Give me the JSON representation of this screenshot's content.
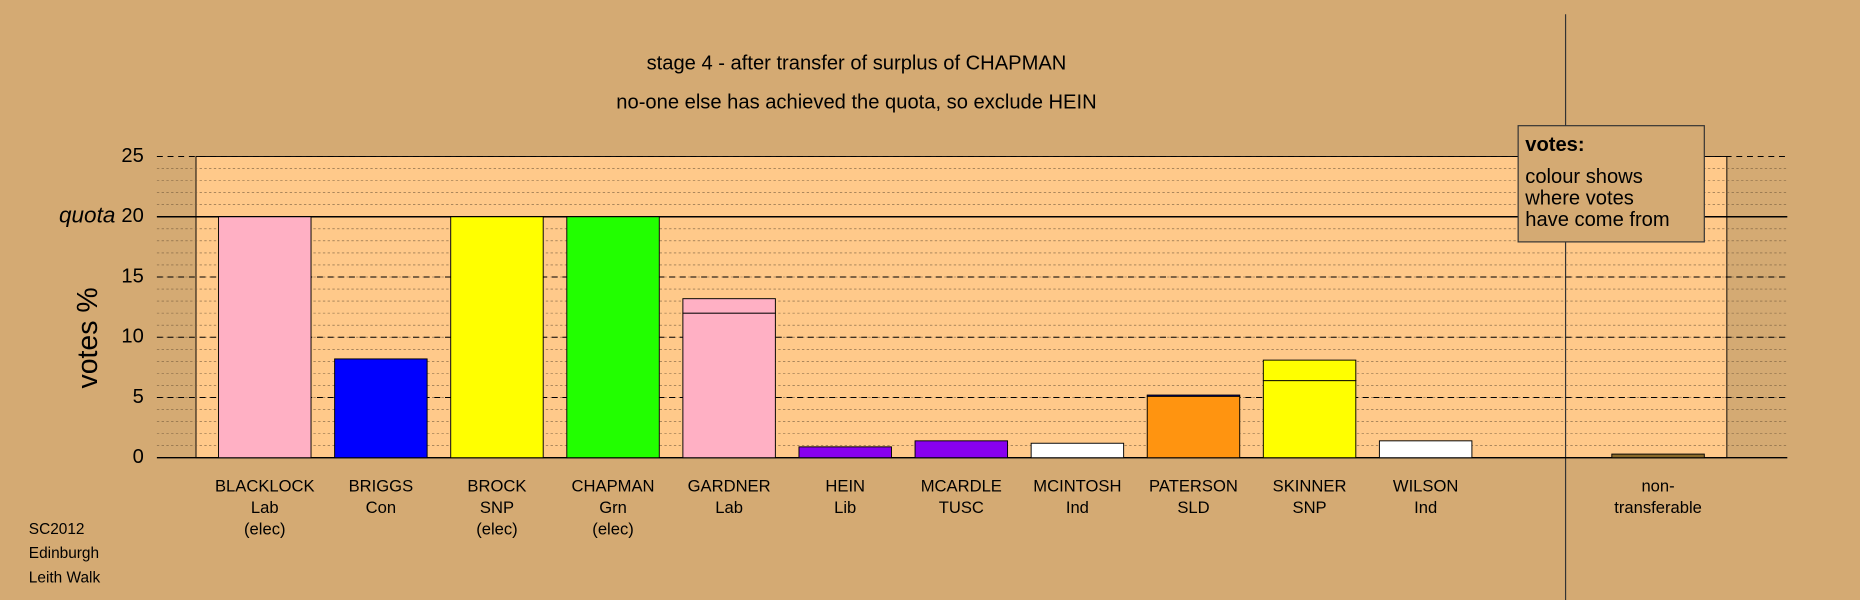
{
  "chart_data": {
    "type": "stacked_bar",
    "title": "stage 4 - after transfer of surplus of CHAPMAN",
    "subtitle": "no-one else has achieved the quota, so exclude HEIN",
    "ylabel": "votes %",
    "ylim": [
      0,
      25
    ],
    "yticks": [
      0,
      5,
      10,
      15,
      20,
      25
    ],
    "minor_step": 1,
    "quota": 20,
    "quota_label": "quota",
    "grid": true,
    "legend_title": "votes:",
    "legend_text": [
      "colour shows",
      "where votes",
      "have come from"
    ],
    "bars": [
      {
        "label": [
          "BLACKLOCK",
          "Lab",
          "(elec)"
        ],
        "segments": [
          {
            "value": 20,
            "color": "#ffb0c4"
          }
        ]
      },
      {
        "label": [
          "BRIGGS",
          "Con"
        ],
        "segments": [
          {
            "value": 8.2,
            "color": "#0000ff"
          }
        ]
      },
      {
        "label": [
          "BROCK",
          "SNP",
          "(elec)"
        ],
        "segments": [
          {
            "value": 20,
            "color": "#ffff00"
          }
        ]
      },
      {
        "label": [
          "CHAPMAN",
          "Grn",
          "(elec)"
        ],
        "segments": [
          {
            "value": 20,
            "color": "#22ff00"
          }
        ]
      },
      {
        "label": [
          "GARDNER",
          "Lab"
        ],
        "segments": [
          {
            "value": 12.0,
            "color": "#ffb0c4"
          },
          {
            "value": 1.2,
            "color": "#ffb0c4"
          }
        ]
      },
      {
        "label": [
          "HEIN",
          "Lib"
        ],
        "segments": [
          {
            "value": 0.9,
            "color": "#8800ee"
          }
        ]
      },
      {
        "label": [
          "MCARDLE",
          "TUSC"
        ],
        "segments": [
          {
            "value": 1.4,
            "color": "#8800ee"
          }
        ]
      },
      {
        "label": [
          "MCINTOSH",
          "Ind"
        ],
        "segments": [
          {
            "value": 1.2,
            "color": "#ffffff"
          }
        ]
      },
      {
        "label": [
          "PATERSON",
          "SLD"
        ],
        "segments": [
          {
            "value": 5.1,
            "color": "#ff9410"
          },
          {
            "value": 0.1,
            "color": "#0000ff"
          }
        ]
      },
      {
        "label": [
          "SKINNER",
          "SNP"
        ],
        "segments": [
          {
            "value": 6.4,
            "color": "#ffff00"
          },
          {
            "value": 1.7,
            "color": "#ffff00"
          }
        ]
      },
      {
        "label": [
          "WILSON",
          "Ind"
        ],
        "segments": [
          {
            "value": 1.4,
            "color": "#ffffff"
          }
        ]
      }
    ],
    "nontransferable": {
      "label": [
        "non-",
        "transferable"
      ],
      "segments": [
        {
          "value": 0.3,
          "color": "#8a6a2a"
        }
      ]
    }
  },
  "footer": [
    "SC2012",
    "Edinburgh",
    "Leith Walk"
  ]
}
